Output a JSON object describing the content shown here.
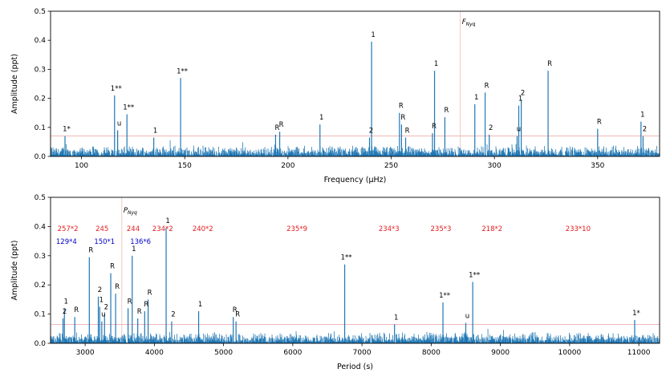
{
  "chart_data": [
    {
      "type": "line",
      "id": "frequency-panel",
      "xlabel": "Frequency (μHz)",
      "ylabel": "Amplitude (ppt)",
      "xlim": [
        85,
        380
      ],
      "ylim": [
        0,
        0.5
      ],
      "xticks": [
        100,
        150,
        200,
        250,
        300,
        350
      ],
      "yticks": [
        0.0,
        0.1,
        0.2,
        0.3,
        0.4,
        0.5
      ],
      "threshold": 0.07,
      "nyquist": {
        "x": 283.5,
        "label": "F",
        "label_sub": "Nyq"
      },
      "noise_level": 0.028,
      "series": [
        {
          "name": "periodogram peaks",
          "color": "#1f77b4",
          "points": [
            {
              "x": 92,
              "y": 0.07,
              "label": "1*"
            },
            {
              "x": 116,
              "y": 0.21,
              "label": "1**"
            },
            {
              "x": 117.5,
              "y": 0.09,
              "label": "u"
            },
            {
              "x": 122,
              "y": 0.145,
              "label": "1**"
            },
            {
              "x": 135,
              "y": 0.065,
              "label": "1"
            },
            {
              "x": 148,
              "y": 0.27,
              "label": "1**"
            },
            {
              "x": 194,
              "y": 0.075,
              "label": "R"
            },
            {
              "x": 196,
              "y": 0.085,
              "label": "R"
            },
            {
              "x": 215.5,
              "y": 0.11,
              "label": "1"
            },
            {
              "x": 239.5,
              "y": 0.065,
              "label": "2"
            },
            {
              "x": 240.5,
              "y": 0.395,
              "label": "1"
            },
            {
              "x": 254,
              "y": 0.15,
              "label": "R"
            },
            {
              "x": 255,
              "y": 0.11,
              "label": "R"
            },
            {
              "x": 257,
              "y": 0.065,
              "label": "R"
            },
            {
              "x": 270,
              "y": 0.08,
              "label": "R"
            },
            {
              "x": 271,
              "y": 0.295,
              "label": "1"
            },
            {
              "x": 276,
              "y": 0.135,
              "label": "R"
            },
            {
              "x": 290.5,
              "y": 0.18,
              "label": "1"
            },
            {
              "x": 295.5,
              "y": 0.22,
              "label": "R"
            },
            {
              "x": 297.5,
              "y": 0.075,
              "label": "2"
            },
            {
              "x": 311,
              "y": 0.07,
              "label": "u"
            },
            {
              "x": 311.8,
              "y": 0.175,
              "label": "1"
            },
            {
              "x": 313,
              "y": 0.195,
              "label": "2"
            },
            {
              "x": 326,
              "y": 0.295,
              "label": "R"
            },
            {
              "x": 350,
              "y": 0.095,
              "label": "R"
            },
            {
              "x": 371,
              "y": 0.12,
              "label": "1"
            },
            {
              "x": 372,
              "y": 0.07,
              "label": "2"
            }
          ]
        }
      ]
    },
    {
      "type": "line",
      "id": "period-panel",
      "xlabel": "Period (s)",
      "ylabel": "Amplitude (ppt)",
      "xlim": [
        2500,
        11300
      ],
      "ylim": [
        0,
        0.5
      ],
      "xticks": [
        3000,
        4000,
        5000,
        6000,
        7000,
        8000,
        9000,
        10000,
        11000
      ],
      "yticks": [
        0.0,
        0.1,
        0.2,
        0.3,
        0.4,
        0.5
      ],
      "threshold": 0.065,
      "nyquist": {
        "x": 3530,
        "label": "P",
        "label_sub": "Nyq"
      },
      "noise_level": 0.028,
      "series": [
        {
          "name": "periodogram peaks",
          "color": "#1f77b4",
          "points": [
            {
              "x": 2680,
              "y": 0.085,
              "label": "2"
            },
            {
              "x": 2700,
              "y": 0.12,
              "label": "1"
            },
            {
              "x": 2850,
              "y": 0.09,
              "label": "R"
            },
            {
              "x": 3060,
              "y": 0.295,
              "label": "R"
            },
            {
              "x": 3190,
              "y": 0.16,
              "label": "2"
            },
            {
              "x": 3210,
              "y": 0.125,
              "label": "1"
            },
            {
              "x": 3240,
              "y": 0.075,
              "label": "u"
            },
            {
              "x": 3280,
              "y": 0.1,
              "label": "2"
            },
            {
              "x": 3370,
              "y": 0.24,
              "label": "R"
            },
            {
              "x": 3440,
              "y": 0.17,
              "label": "R"
            },
            {
              "x": 3620,
              "y": 0.12,
              "label": "R"
            },
            {
              "x": 3680,
              "y": 0.3,
              "label": "1"
            },
            {
              "x": 3760,
              "y": 0.085,
              "label": "R"
            },
            {
              "x": 3860,
              "y": 0.11,
              "label": "R"
            },
            {
              "x": 3910,
              "y": 0.15,
              "label": "R"
            },
            {
              "x": 4170,
              "y": 0.395,
              "label": "1"
            },
            {
              "x": 4250,
              "y": 0.075,
              "label": "2"
            },
            {
              "x": 4640,
              "y": 0.11,
              "label": "1"
            },
            {
              "x": 5140,
              "y": 0.09,
              "label": "R"
            },
            {
              "x": 5180,
              "y": 0.075,
              "label": "R"
            },
            {
              "x": 6750,
              "y": 0.27,
              "label": "1**"
            },
            {
              "x": 7470,
              "y": 0.065,
              "label": "1"
            },
            {
              "x": 8170,
              "y": 0.14,
              "label": "1**"
            },
            {
              "x": 8500,
              "y": 0.07,
              "label": "u"
            },
            {
              "x": 8600,
              "y": 0.21,
              "label": "1**"
            },
            {
              "x": 10940,
              "y": 0.08,
              "label": "1*"
            }
          ]
        }
      ],
      "annotations": [
        {
          "text": "257*2",
          "x": 2600,
          "y": 0.385,
          "color": "#e31a1c"
        },
        {
          "text": "245",
          "x": 3150,
          "y": 0.385,
          "color": "#e31a1c"
        },
        {
          "text": "244",
          "x": 3600,
          "y": 0.385,
          "color": "#e31a1c"
        },
        {
          "text": "234*2",
          "x": 3970,
          "y": 0.385,
          "color": "#e31a1c"
        },
        {
          "text": "240*2",
          "x": 4550,
          "y": 0.385,
          "color": "#e31a1c"
        },
        {
          "text": "235*9",
          "x": 5910,
          "y": 0.385,
          "color": "#e31a1c"
        },
        {
          "text": "234*3",
          "x": 7240,
          "y": 0.385,
          "color": "#e31a1c"
        },
        {
          "text": "235*3",
          "x": 7990,
          "y": 0.385,
          "color": "#e31a1c"
        },
        {
          "text": "218*2",
          "x": 8730,
          "y": 0.385,
          "color": "#e31a1c"
        },
        {
          "text": "233*10",
          "x": 9940,
          "y": 0.385,
          "color": "#e31a1c"
        },
        {
          "text": "129*4",
          "x": 2580,
          "y": 0.34,
          "color": "#0000cc"
        },
        {
          "text": "150*1",
          "x": 3130,
          "y": 0.34,
          "color": "#0000cc"
        },
        {
          "text": "136*6",
          "x": 3650,
          "y": 0.34,
          "color": "#0000cc"
        }
      ]
    }
  ]
}
